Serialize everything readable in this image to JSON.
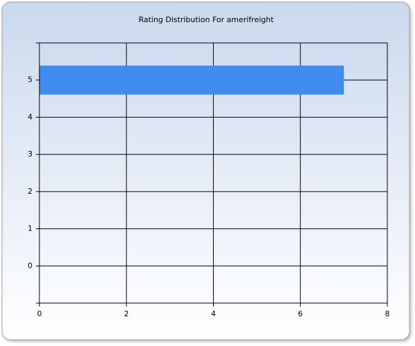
{
  "chart_data": {
    "type": "barh",
    "title": "Rating Distribution For amerifreight",
    "categories": [
      "0",
      "1",
      "2",
      "3",
      "4",
      "5"
    ],
    "values": [
      0,
      0,
      0,
      0,
      0,
      7
    ],
    "color": "#418cf0",
    "xlim": [
      0,
      8
    ],
    "xticks": [
      0,
      2,
      4,
      6,
      8
    ],
    "grid": true
  }
}
